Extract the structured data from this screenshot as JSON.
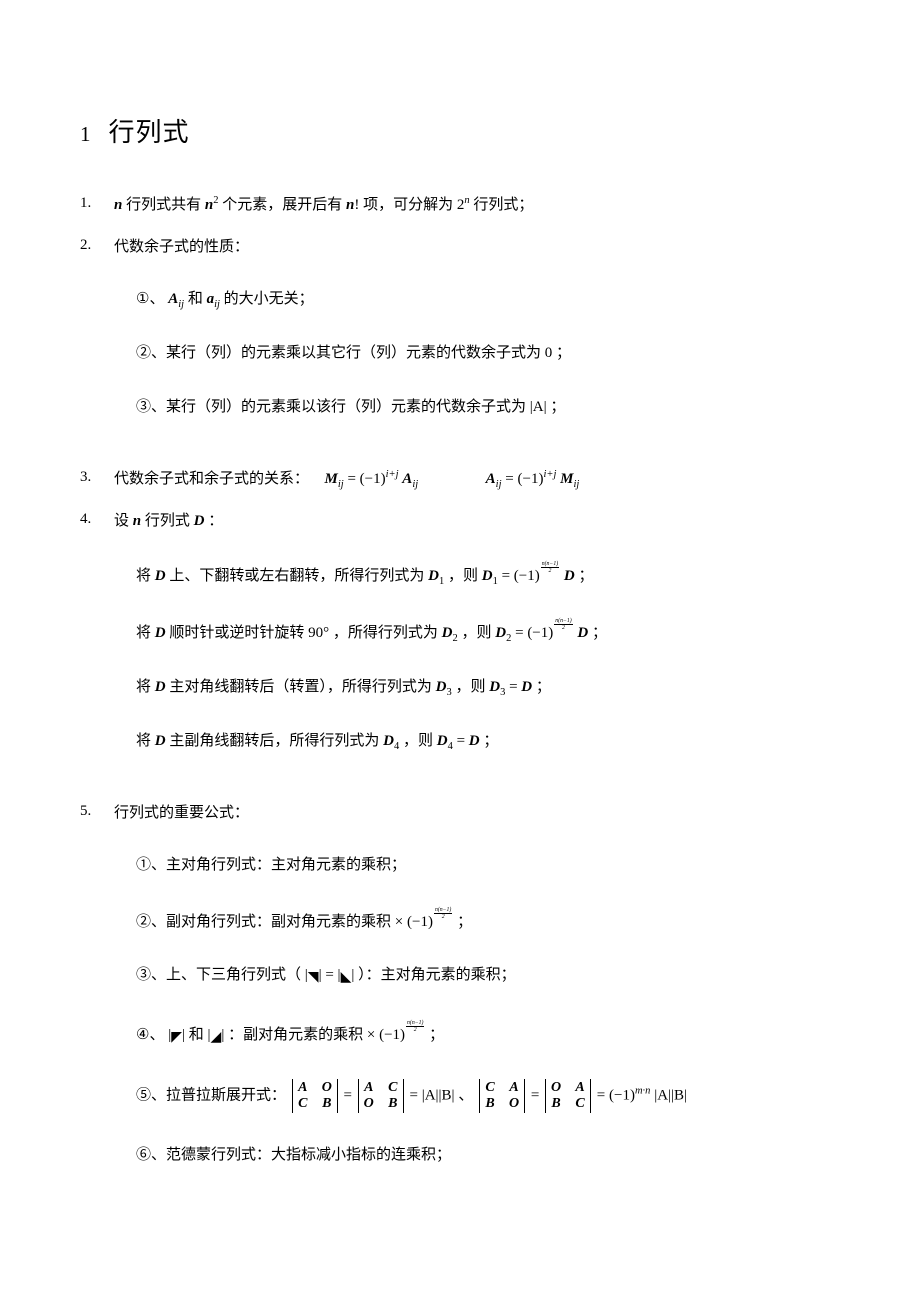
{
  "chapter": {
    "num": "1",
    "title": "行列式"
  },
  "items": {
    "i1": {
      "num": "1.",
      "p1a": "行列式共有",
      "p1b": "个元素，展开后有",
      "p1c": "项，可分解为",
      "p1d": "行列式；"
    },
    "i2": {
      "num": "2.",
      "head": "代数余子式的性质：",
      "s1a": "①、",
      "s1b": "和",
      "s1c": "的大小无关；",
      "s2": "②、某行（列）的元素乘以其它行（列）元素的代数余子式为",
      "s2b": "；",
      "s3": "③、某行（列）的元素乘以该行（列）元素的代数余子式为",
      "s3b": "；"
    },
    "i3": {
      "num": "3.",
      "head": "代数余子式和余子式的关系："
    },
    "i4": {
      "num": "4.",
      "head": "设",
      "head2": "行列式",
      "head3": "：",
      "s1a": "将",
      "s1b": "上、下翻转或左右翻转，所得行列式为",
      "s1c": "，则",
      "s1d": "；",
      "s2a": "将",
      "s2b": "顺时针或逆时针旋转",
      "s2c": "，所得行列式为",
      "s2d": "，则",
      "s2e": "；",
      "s3a": "将",
      "s3b": "主对角线翻转后（转置），所得行列式为",
      "s3c": "，则",
      "s3d": "；",
      "s4a": "将",
      "s4b": "主副角线翻转后，所得行列式为",
      "s4c": "，则",
      "s4d": "；"
    },
    "i5": {
      "num": "5.",
      "head": "行列式的重要公式：",
      "s1": "①、主对角行列式：主对角元素的乘积；",
      "s2a": "②、副对角行列式：副对角元素的乘积",
      "s2b": "；",
      "s3": "③、上、下三角行列式（",
      "s3b": "）：主对角元素的乘积；",
      "s4a": "④、",
      "s4b": "和",
      "s4c": "：副对角元素的乘积",
      "s4d": "；",
      "s5": "⑤、拉普拉斯展开式：",
      "s5mid": "、",
      "s6": "⑥、范德蒙行列式：大指标减小指标的连乘积；"
    }
  },
  "math": {
    "n": "n",
    "n2": "2",
    "nfact": "!",
    "two": "2",
    "A": "A",
    "a": "a",
    "ij": "ij",
    "M": "M",
    "eq": "=",
    "neg1": "(−1)",
    "ipj": "i+j",
    "zero": "0",
    "absA": "|A|",
    "D": "D",
    "D1": "1",
    "D2": "2",
    "D3": "3",
    "D4": "4",
    "ninety": "90°",
    "frac_top": "n(n−1)",
    "frac_bot": "2",
    "times": "×",
    "mgm": "m·n",
    "tri_dr": "◥",
    "tri_dl": "◤",
    "tri_ur": "◢",
    "tri_ul": "◣",
    "B": "B",
    "C": "C",
    "O": "O",
    "absAB": "|A||B|"
  }
}
